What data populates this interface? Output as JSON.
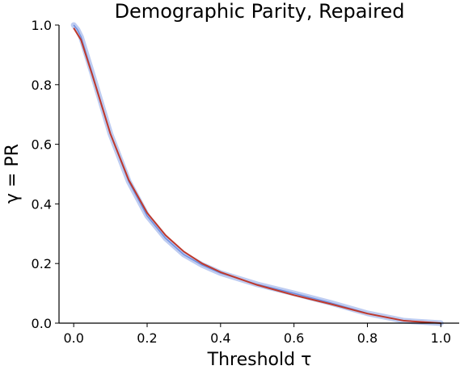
{
  "chart_data": {
    "type": "line",
    "title": "Demographic Parity, Repaired",
    "xlabel": "Threshold τ",
    "ylabel": "γ = PR",
    "xlim": [
      -0.04,
      1.05
    ],
    "ylim": [
      0.0,
      1.0
    ],
    "xticks": [
      0.0,
      0.2,
      0.4,
      0.6,
      0.8,
      1.0
    ],
    "xtick_labels": [
      "0.0",
      "0.2",
      "0.4",
      "0.6",
      "0.8",
      "1.0"
    ],
    "yticks": [
      0.0,
      0.2,
      0.4,
      0.6,
      0.8,
      1.0
    ],
    "ytick_labels": [
      "0.0",
      "0.2",
      "0.4",
      "0.6",
      "0.8",
      "1.0"
    ],
    "grid": false,
    "legend": false,
    "series": [
      {
        "color": "#6f8fe0",
        "style": "band",
        "x": [
          0.0,
          0.01,
          0.02,
          0.05,
          0.1,
          0.15,
          0.2,
          0.25,
          0.3,
          0.35,
          0.4,
          0.5,
          0.6,
          0.7,
          0.8,
          0.9,
          1.0
        ],
        "y": [
          1.0,
          0.985,
          0.96,
          0.84,
          0.635,
          0.475,
          0.36,
          0.285,
          0.23,
          0.195,
          0.168,
          0.13,
          0.1,
          0.068,
          0.033,
          0.008,
          0.0
        ]
      },
      {
        "color": "#c0392b",
        "style": "line",
        "x": [
          0.0,
          0.01,
          0.02,
          0.05,
          0.1,
          0.15,
          0.2,
          0.25,
          0.3,
          0.35,
          0.4,
          0.5,
          0.6,
          0.7,
          0.8,
          0.9,
          1.0
        ],
        "y": [
          0.99,
          0.97,
          0.95,
          0.835,
          0.635,
          0.48,
          0.37,
          0.295,
          0.24,
          0.2,
          0.171,
          0.128,
          0.094,
          0.064,
          0.032,
          0.008,
          0.0
        ]
      }
    ]
  }
}
